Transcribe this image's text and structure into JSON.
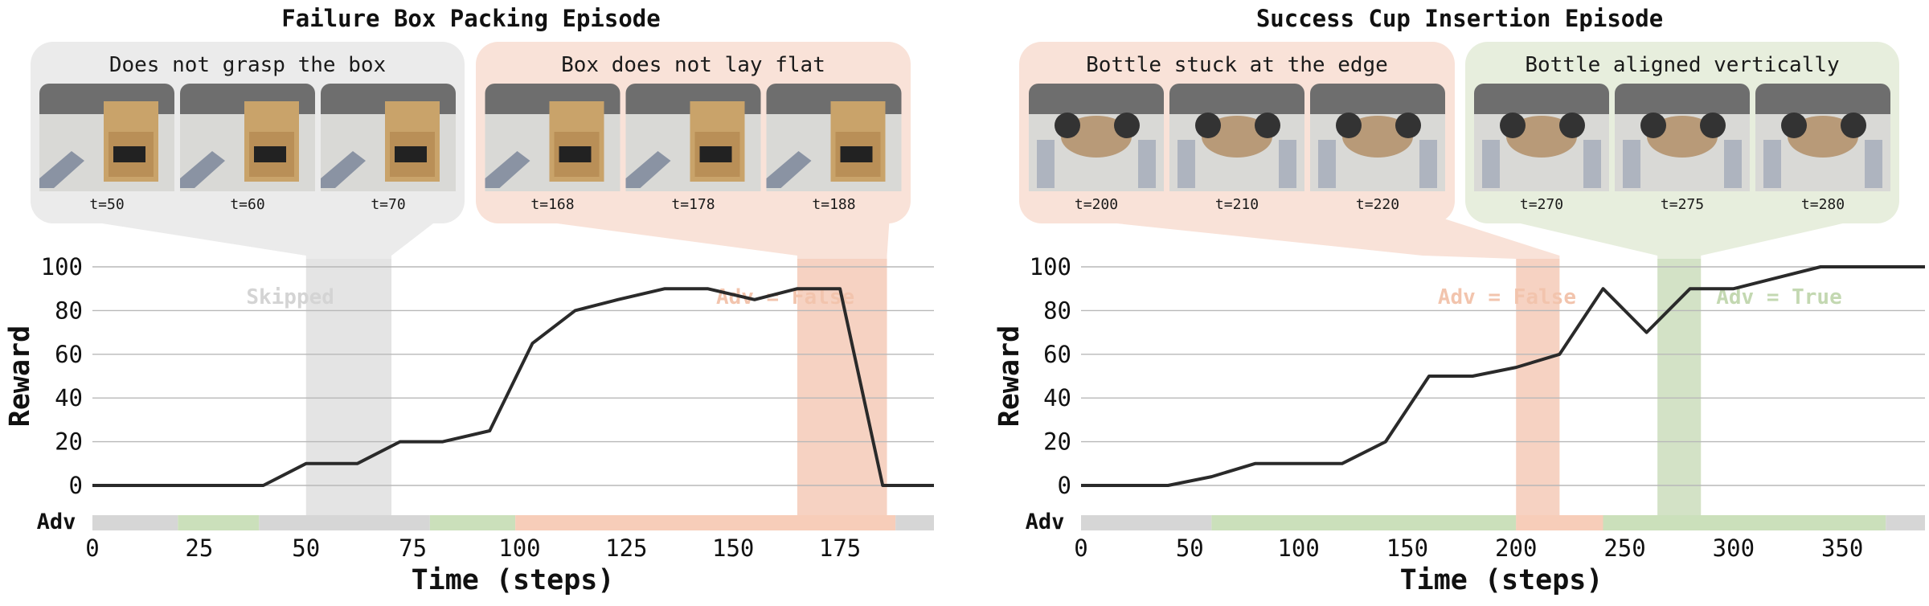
{
  "colors": {
    "line": "#2a2a2a",
    "grid": "#b8b8b8",
    "gray_band": "#e4e4e4",
    "gray_panel": "#ebebeb",
    "orange_band": "#f6d2c2",
    "orange_panel": "#f9e2d8",
    "orange_text": "#f2c4ad",
    "green_band": "#d3e2c6",
    "green_panel": "#e7eedd",
    "green_text": "#c3d8b1",
    "skipped_text": "#d4d4d4",
    "adv_gray": "#d6d6d6",
    "adv_green": "#cbe0bb",
    "adv_orange": "#f7cdb9",
    "photo_bg": "#6e6e6e"
  },
  "chart_data": [
    {
      "type": "line",
      "title": "Failure Box Packing Episode",
      "xlabel": "Time (steps)",
      "ylabel": "Reward",
      "xlim": [
        0,
        197
      ],
      "ylim": [
        0,
        100
      ],
      "xticks": [
        0,
        25,
        50,
        75,
        100,
        125,
        150,
        175
      ],
      "yticks": [
        0,
        20,
        40,
        60,
        80,
        100
      ],
      "grid": "horizontal",
      "series": [
        {
          "x": [
            0,
            20,
            40,
            50,
            62,
            72,
            82,
            93,
            103,
            113,
            123,
            134,
            144,
            155,
            165,
            175,
            185,
            197
          ],
          "y": [
            0,
            0,
            0,
            10,
            10,
            20,
            20,
            25,
            65,
            80,
            85,
            90,
            90,
            85,
            90,
            90,
            0,
            0
          ]
        }
      ],
      "bands": [
        {
          "start": 50,
          "end": 70,
          "color": "gray",
          "label": "Skipped",
          "label_x": 36
        },
        {
          "start": 165,
          "end": 186,
          "color": "orange",
          "label": "Adv = False",
          "label_x": 146
        }
      ],
      "adv_label": "Adv",
      "adv_bar": [
        {
          "start": 0,
          "end": 20,
          "color": "gray"
        },
        {
          "start": 20,
          "end": 39,
          "color": "green"
        },
        {
          "start": 39,
          "end": 79,
          "color": "gray"
        },
        {
          "start": 79,
          "end": 99,
          "color": "green"
        },
        {
          "start": 99,
          "end": 188,
          "color": "orange"
        },
        {
          "start": 188,
          "end": 197,
          "color": "gray"
        }
      ],
      "annotations": [
        {
          "text": "Does not grasp the box",
          "color": "gray",
          "band": [
            50,
            70
          ],
          "frames": [
            {
              "label": "t=50",
              "scene": "box"
            },
            {
              "label": "t=60",
              "scene": "box"
            },
            {
              "label": "t=70",
              "scene": "box"
            }
          ]
        },
        {
          "text": "Box does not lay flat",
          "color": "orange",
          "band": [
            165,
            186
          ],
          "frames": [
            {
              "label": "t=168",
              "scene": "box"
            },
            {
              "label": "t=178",
              "scene": "box"
            },
            {
              "label": "t=188",
              "scene": "box"
            }
          ]
        }
      ]
    },
    {
      "type": "line",
      "title": "Success Cup Insertion Episode",
      "xlabel": "Time (steps)",
      "ylabel": "Reward",
      "xlim": [
        0,
        388
      ],
      "ylim": [
        0,
        100
      ],
      "xticks": [
        0,
        50,
        100,
        150,
        200,
        250,
        300,
        350
      ],
      "yticks": [
        0,
        20,
        40,
        60,
        80,
        100
      ],
      "grid": "horizontal",
      "series": [
        {
          "x": [
            0,
            40,
            60,
            80,
            100,
            120,
            140,
            160,
            180,
            200,
            220,
            240,
            260,
            280,
            300,
            320,
            340,
            360,
            388
          ],
          "y": [
            0,
            0,
            4,
            10,
            10,
            10,
            20,
            50,
            50,
            54,
            60,
            90,
            70,
            90,
            90,
            95,
            100,
            100,
            100
          ]
        }
      ],
      "bands": [
        {
          "start": 200,
          "end": 220,
          "color": "orange",
          "label": "Adv = False",
          "label_x": 164
        },
        {
          "start": 265,
          "end": 285,
          "color": "green",
          "label": "Adv = True",
          "label_x": 292
        }
      ],
      "adv_label": "Adv",
      "adv_bar": [
        {
          "start": 0,
          "end": 60,
          "color": "gray"
        },
        {
          "start": 60,
          "end": 200,
          "color": "green"
        },
        {
          "start": 200,
          "end": 240,
          "color": "orange"
        },
        {
          "start": 240,
          "end": 370,
          "color": "green"
        },
        {
          "start": 370,
          "end": 388,
          "color": "gray"
        }
      ],
      "annotations": [
        {
          "text": "Bottle stuck at the edge",
          "color": "orange",
          "band": [
            200,
            220
          ],
          "frames": [
            {
              "label": "t=200",
              "scene": "cup"
            },
            {
              "label": "t=210",
              "scene": "cup"
            },
            {
              "label": "t=220",
              "scene": "cup"
            }
          ]
        },
        {
          "text": "Bottle aligned vertically",
          "color": "green",
          "band": [
            265,
            285
          ],
          "frames": [
            {
              "label": "t=270",
              "scene": "cup"
            },
            {
              "label": "t=275",
              "scene": "cup"
            },
            {
              "label": "t=280",
              "scene": "cup"
            }
          ]
        }
      ]
    }
  ]
}
